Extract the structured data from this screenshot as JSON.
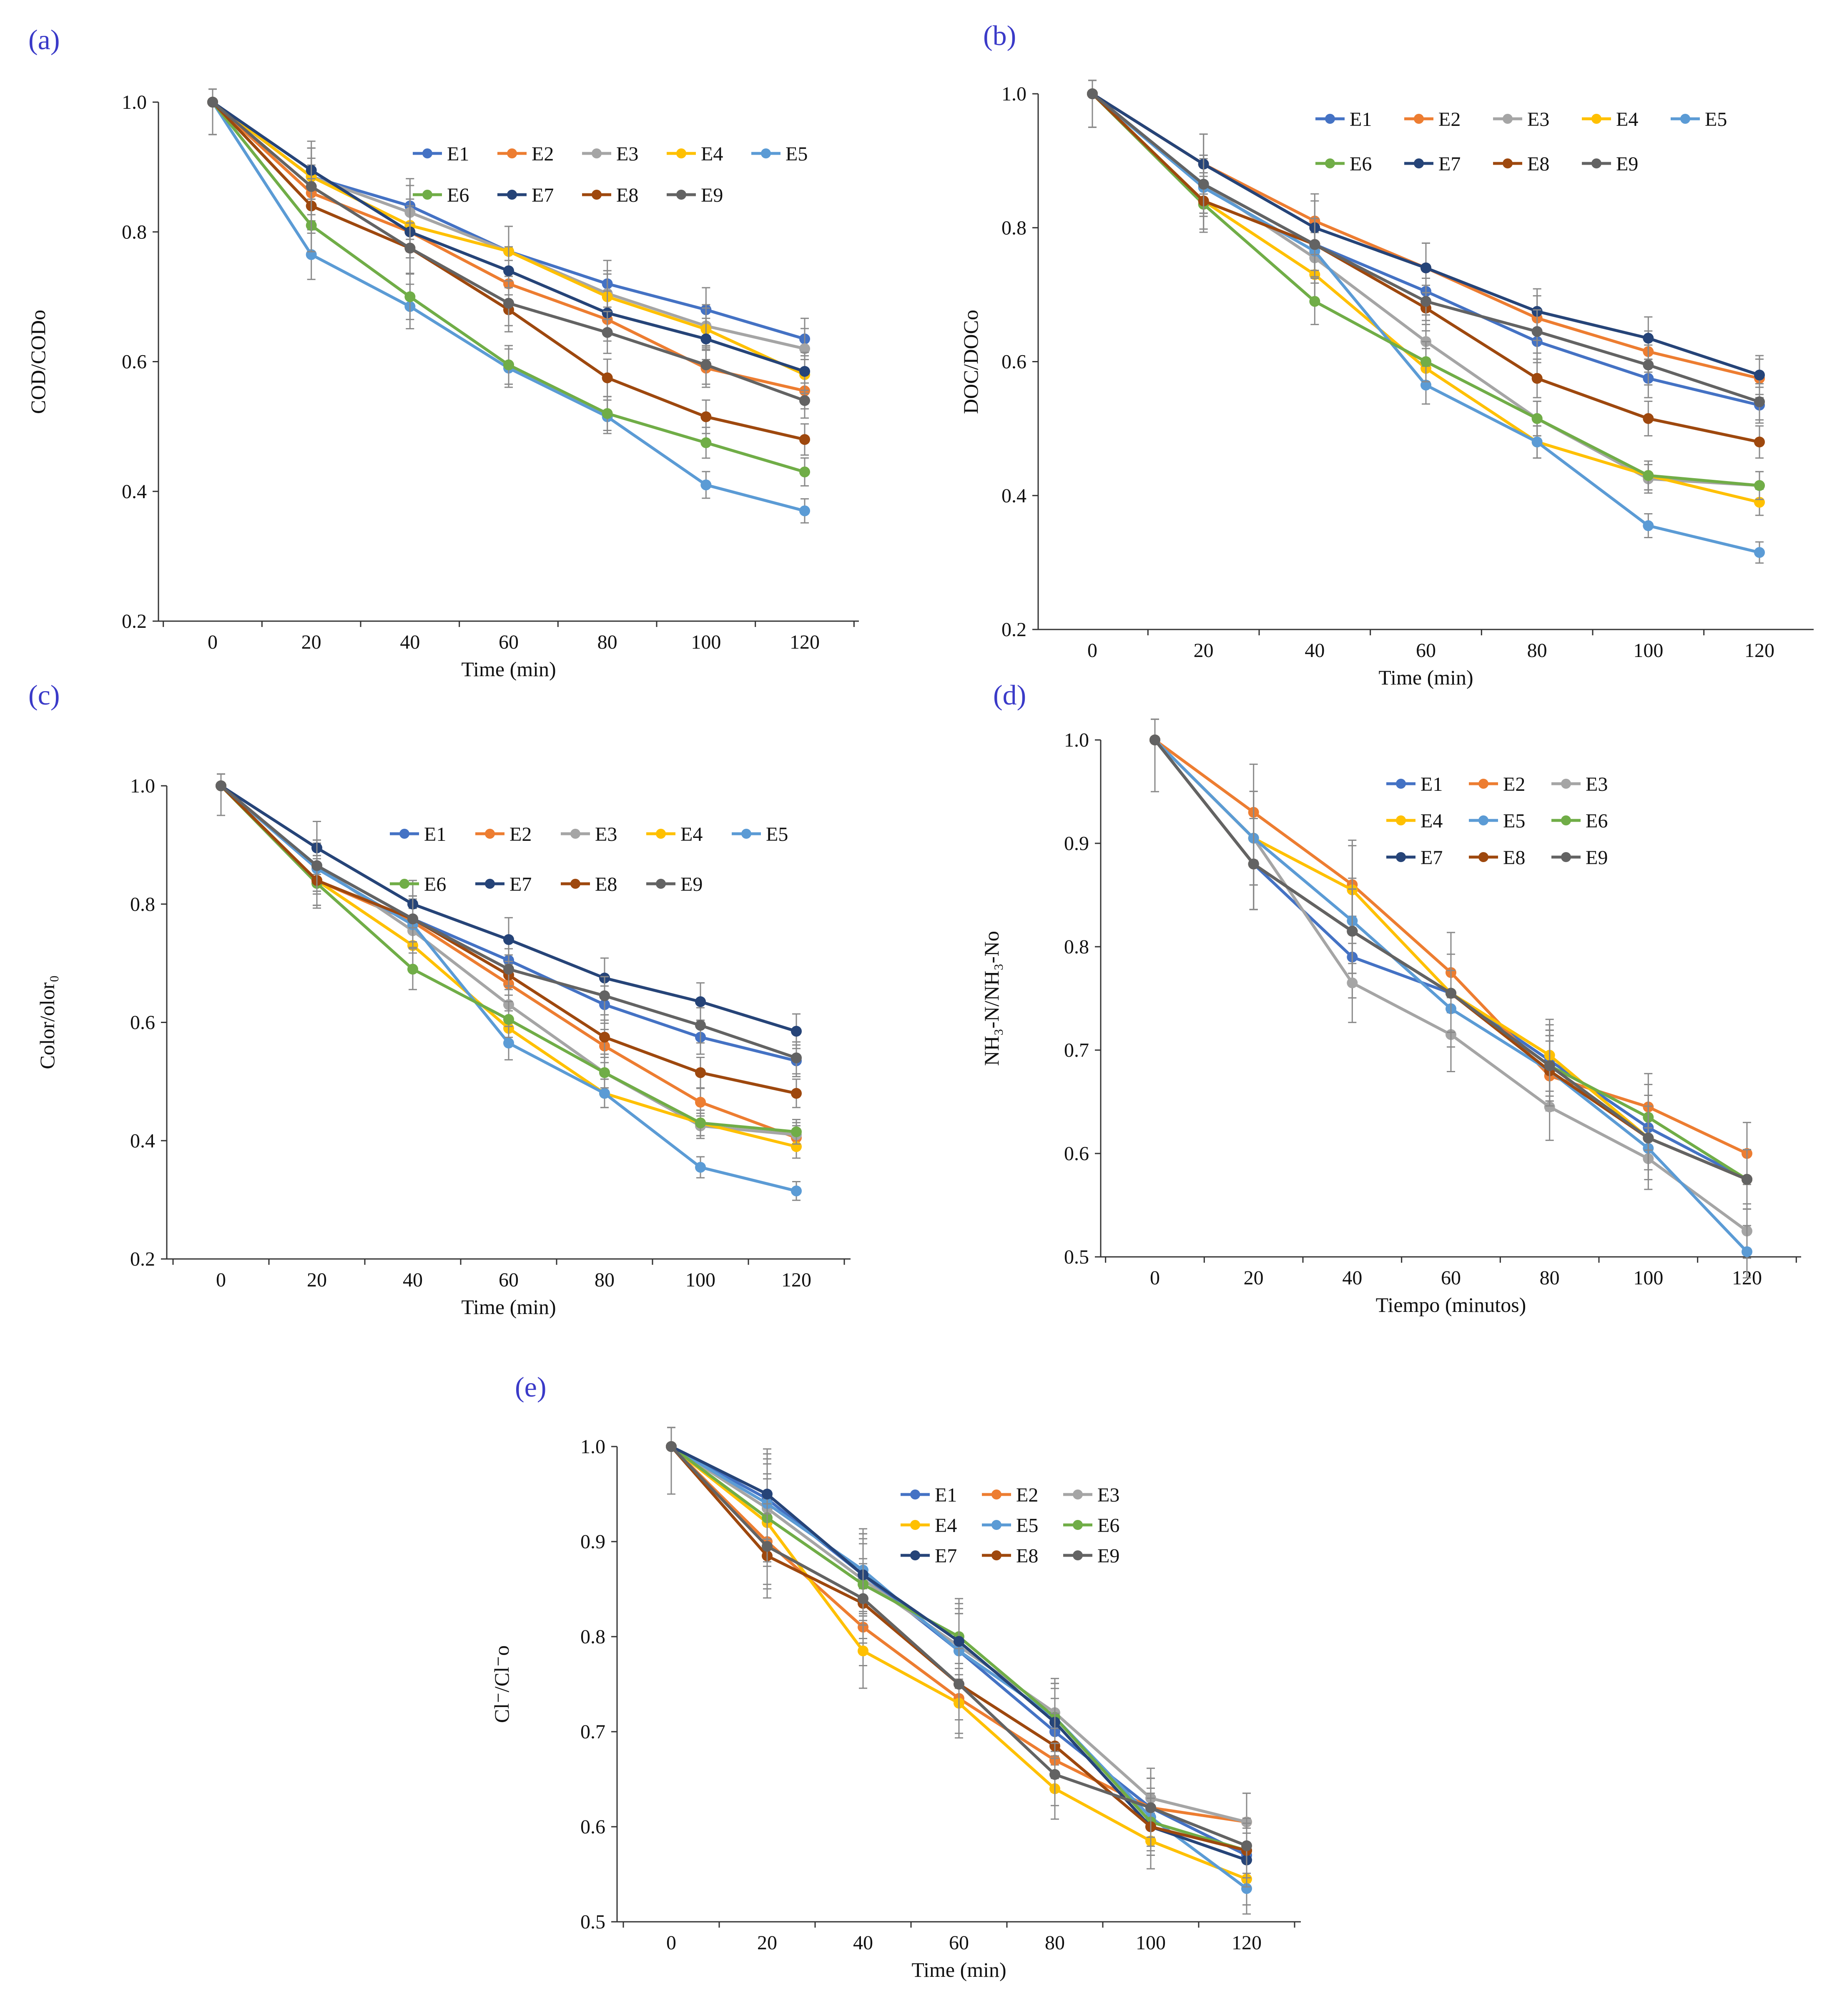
{
  "series_colors": {
    "E1": "#4472C4",
    "E2": "#ED7D31",
    "E3": "#A5A5A5",
    "E4": "#FFC000",
    "E5": "#5B9BD5",
    "E6": "#70AD47",
    "E7": "#264478",
    "E8": "#9E480E",
    "E9": "#636363"
  },
  "chart_data": [
    {
      "panel": "(a)",
      "type": "line",
      "xlabel": "Time (min)",
      "ylabel": "COD/CODo",
      "ylim": [
        0.2,
        1.0
      ],
      "y_ticks": [
        "0.2",
        "0.4",
        "0.6",
        "0.8",
        "1.0"
      ],
      "x": [
        0,
        20,
        40,
        60,
        80,
        100,
        120
      ],
      "x_ticks": [
        "0",
        "20",
        "40",
        "60",
        "80",
        "100",
        "120"
      ],
      "legend_cols": 5,
      "series": [
        {
          "name": "E1",
          "values": [
            1.0,
            0.885,
            0.84,
            0.77,
            0.72,
            0.68,
            0.635
          ]
        },
        {
          "name": "E2",
          "values": [
            1.0,
            0.86,
            0.8,
            0.72,
            0.665,
            0.59,
            0.555
          ]
        },
        {
          "name": "E3",
          "values": [
            1.0,
            0.885,
            0.83,
            0.77,
            0.705,
            0.655,
            0.62
          ]
        },
        {
          "name": "E4",
          "values": [
            1.0,
            0.885,
            0.81,
            0.77,
            0.7,
            0.65,
            0.58
          ]
        },
        {
          "name": "E5",
          "values": [
            1.0,
            0.765,
            0.685,
            0.59,
            0.515,
            0.41,
            0.37
          ]
        },
        {
          "name": "E6",
          "values": [
            1.0,
            0.81,
            0.7,
            0.595,
            0.52,
            0.475,
            0.43
          ]
        },
        {
          "name": "E7",
          "values": [
            1.0,
            0.895,
            0.8,
            0.74,
            0.675,
            0.635,
            0.585
          ]
        },
        {
          "name": "E8",
          "values": [
            1.0,
            0.84,
            0.775,
            0.68,
            0.575,
            0.515,
            0.48
          ]
        },
        {
          "name": "E9",
          "values": [
            1.0,
            0.87,
            0.775,
            0.69,
            0.645,
            0.595,
            0.54
          ]
        }
      ]
    },
    {
      "panel": "(b)",
      "type": "line",
      "xlabel": "Time (min)",
      "ylabel": "DOC/DOCo",
      "ylim": [
        0.2,
        1.0
      ],
      "y_ticks": [
        "0.2",
        "0.4",
        "0.6",
        "0.8",
        "1.0"
      ],
      "x": [
        0,
        20,
        40,
        60,
        80,
        100,
        120
      ],
      "x_ticks": [
        "0",
        "20",
        "40",
        "60",
        "80",
        "100",
        "120"
      ],
      "legend_cols": 5,
      "series": [
        {
          "name": "E1",
          "values": [
            1.0,
            0.865,
            0.775,
            0.705,
            0.63,
            0.575,
            0.535
          ]
        },
        {
          "name": "E2",
          "values": [
            1.0,
            0.895,
            0.81,
            0.74,
            0.665,
            0.615,
            0.575
          ]
        },
        {
          "name": "E3",
          "values": [
            1.0,
            0.865,
            0.755,
            0.63,
            0.515,
            0.425,
            0.415
          ]
        },
        {
          "name": "E4",
          "values": [
            1.0,
            0.84,
            0.73,
            0.59,
            0.48,
            0.43,
            0.39
          ]
        },
        {
          "name": "E5",
          "values": [
            1.0,
            0.86,
            0.765,
            0.565,
            0.48,
            0.355,
            0.315
          ]
        },
        {
          "name": "E6",
          "values": [
            1.0,
            0.835,
            0.69,
            0.6,
            0.515,
            0.43,
            0.415
          ]
        },
        {
          "name": "E7",
          "values": [
            1.0,
            0.895,
            0.8,
            0.74,
            0.675,
            0.635,
            0.58
          ]
        },
        {
          "name": "E8",
          "values": [
            1.0,
            0.84,
            0.775,
            0.68,
            0.575,
            0.515,
            0.48
          ]
        },
        {
          "name": "E9",
          "values": [
            1.0,
            0.865,
            0.775,
            0.69,
            0.645,
            0.595,
            0.54
          ]
        }
      ]
    },
    {
      "panel": "(c)",
      "type": "line",
      "xlabel": "Time (min)",
      "ylabel": "Color/olor₀",
      "ylim": [
        0.2,
        1.0
      ],
      "y_ticks": [
        "0.2",
        "0.4",
        "0.6",
        "0.8",
        "1.0"
      ],
      "x": [
        0,
        20,
        40,
        60,
        80,
        100,
        120
      ],
      "x_ticks": [
        "0",
        "20",
        "40",
        "60",
        "80",
        "100",
        "120"
      ],
      "legend_cols": 5,
      "series": [
        {
          "name": "E1",
          "values": [
            1.0,
            0.865,
            0.775,
            0.705,
            0.63,
            0.575,
            0.535
          ]
        },
        {
          "name": "E2",
          "values": [
            1.0,
            0.84,
            0.77,
            0.665,
            0.56,
            0.465,
            0.405
          ]
        },
        {
          "name": "E3",
          "values": [
            1.0,
            0.865,
            0.755,
            0.63,
            0.515,
            0.425,
            0.41
          ]
        },
        {
          "name": "E4",
          "values": [
            1.0,
            0.84,
            0.73,
            0.59,
            0.48,
            0.43,
            0.39
          ]
        },
        {
          "name": "E5",
          "values": [
            1.0,
            0.86,
            0.765,
            0.565,
            0.48,
            0.355,
            0.315
          ]
        },
        {
          "name": "E6",
          "values": [
            1.0,
            0.835,
            0.69,
            0.605,
            0.515,
            0.43,
            0.415
          ]
        },
        {
          "name": "E7",
          "values": [
            1.0,
            0.895,
            0.8,
            0.74,
            0.675,
            0.635,
            0.585
          ]
        },
        {
          "name": "E8",
          "values": [
            1.0,
            0.84,
            0.775,
            0.68,
            0.575,
            0.515,
            0.48
          ]
        },
        {
          "name": "E9",
          "values": [
            1.0,
            0.865,
            0.775,
            0.69,
            0.645,
            0.595,
            0.54
          ]
        }
      ]
    },
    {
      "panel": "(d)",
      "type": "line",
      "xlabel": "Tiempo (minutos)",
      "ylabel": "NH₃-N/NH₃-No",
      "ylim": [
        0.5,
        1.0
      ],
      "y_ticks": [
        "0.5",
        "0.6",
        "0.7",
        "0.8",
        "0.9",
        "1.0"
      ],
      "x": [
        0,
        20,
        40,
        60,
        80,
        100,
        120
      ],
      "x_ticks": [
        "0",
        "20",
        "40",
        "60",
        "80",
        "100",
        "120"
      ],
      "legend_cols": 3,
      "series": [
        {
          "name": "E1",
          "values": [
            1.0,
            0.88,
            0.79,
            0.755,
            0.69,
            0.625,
            0.575
          ]
        },
        {
          "name": "E2",
          "values": [
            1.0,
            0.93,
            0.86,
            0.775,
            0.675,
            0.645,
            0.6
          ]
        },
        {
          "name": "E3",
          "values": [
            1.0,
            0.905,
            0.765,
            0.715,
            0.645,
            0.595,
            0.525
          ]
        },
        {
          "name": "E4",
          "values": [
            1.0,
            0.905,
            0.855,
            0.755,
            0.695,
            0.615,
            0.575
          ]
        },
        {
          "name": "E5",
          "values": [
            1.0,
            0.905,
            0.825,
            0.74,
            0.68,
            0.605,
            0.505
          ]
        },
        {
          "name": "E6",
          "values": [
            1.0,
            0.88,
            0.815,
            0.755,
            0.685,
            0.635,
            0.575
          ]
        },
        {
          "name": "E7",
          "values": [
            1.0,
            0.88,
            0.815,
            0.755,
            0.685,
            0.615,
            0.575
          ]
        },
        {
          "name": "E8",
          "values": [
            1.0,
            0.88,
            0.815,
            0.755,
            0.68,
            0.615,
            0.575
          ]
        },
        {
          "name": "E9",
          "values": [
            1.0,
            0.88,
            0.815,
            0.755,
            0.685,
            0.615,
            0.575
          ]
        }
      ]
    },
    {
      "panel": "(e)",
      "type": "line",
      "xlabel": "Time (min)",
      "ylabel": "Cl⁻/Cl⁻o",
      "ylim": [
        0.5,
        1.0
      ],
      "y_ticks": [
        "0.5",
        "0.6",
        "0.7",
        "0.8",
        "0.9",
        "1.0"
      ],
      "x": [
        0,
        20,
        40,
        60,
        80,
        100,
        120
      ],
      "x_ticks": [
        "0",
        "20",
        "40",
        "60",
        "80",
        "100",
        "120"
      ],
      "legend_cols": 3,
      "series": [
        {
          "name": "E1",
          "values": [
            1.0,
            0.945,
            0.865,
            0.785,
            0.7,
            0.62,
            0.57
          ]
        },
        {
          "name": "E2",
          "values": [
            1.0,
            0.9,
            0.81,
            0.735,
            0.67,
            0.62,
            0.605
          ]
        },
        {
          "name": "E3",
          "values": [
            1.0,
            0.935,
            0.86,
            0.79,
            0.72,
            0.63,
            0.605
          ]
        },
        {
          "name": "E4",
          "values": [
            1.0,
            0.92,
            0.785,
            0.73,
            0.64,
            0.585,
            0.545
          ]
        },
        {
          "name": "E5",
          "values": [
            1.0,
            0.94,
            0.87,
            0.785,
            0.715,
            0.61,
            0.535
          ]
        },
        {
          "name": "E6",
          "values": [
            1.0,
            0.925,
            0.855,
            0.8,
            0.715,
            0.605,
            0.575
          ]
        },
        {
          "name": "E7",
          "values": [
            1.0,
            0.95,
            0.865,
            0.795,
            0.71,
            0.6,
            0.565
          ]
        },
        {
          "name": "E8",
          "values": [
            1.0,
            0.885,
            0.835,
            0.75,
            0.685,
            0.6,
            0.575
          ]
        },
        {
          "name": "E9",
          "values": [
            1.0,
            0.895,
            0.84,
            0.75,
            0.655,
            0.62,
            0.58
          ]
        }
      ]
    }
  ]
}
